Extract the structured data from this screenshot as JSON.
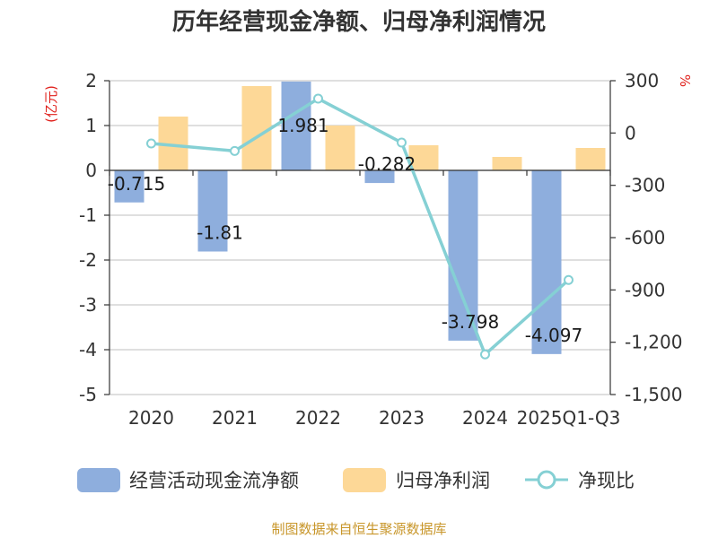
{
  "chart_data": {
    "type": "bar",
    "title": "历年经营现金净额、归母净利润情况",
    "categories": [
      "2020",
      "2021",
      "2022",
      "2023",
      "2024",
      "2025Q1-Q3"
    ],
    "y_left": {
      "unit": "(亿元)",
      "ylim": [
        -5,
        2
      ],
      "ticks": [
        "2",
        "1",
        "0",
        "-1",
        "-2",
        "-3",
        "-4",
        "-5"
      ]
    },
    "y_right": {
      "unit": "%",
      "ylim": [
        -1500,
        300
      ],
      "ticks": [
        "300",
        "0",
        "-300",
        "-600",
        "-900",
        "-1,200",
        "-1,500"
      ]
    },
    "series": [
      {
        "name": "经营活动现金流净额",
        "type": "bar",
        "color": "#8eaedd",
        "values": [
          -0.715,
          -1.81,
          1.981,
          -0.282,
          -3.798,
          -4.097
        ],
        "labels": [
          "-0.715",
          "-1.81",
          "1.981",
          "-0.282",
          "-3.798",
          "-4.097"
        ]
      },
      {
        "name": "归母净利润",
        "type": "bar",
        "color": "#fdd897",
        "values": [
          1.2,
          1.88,
          1.0,
          0.56,
          0.3,
          0.5
        ]
      },
      {
        "name": "净现比",
        "type": "line",
        "axis": "right",
        "color": "#85d0d4",
        "values": [
          -60,
          -103,
          197,
          -55,
          -1270,
          -843
        ]
      }
    ],
    "legend_position": "bottom",
    "grid": true
  },
  "footer": {
    "source": "制图数据来自恒生聚源数据库"
  }
}
